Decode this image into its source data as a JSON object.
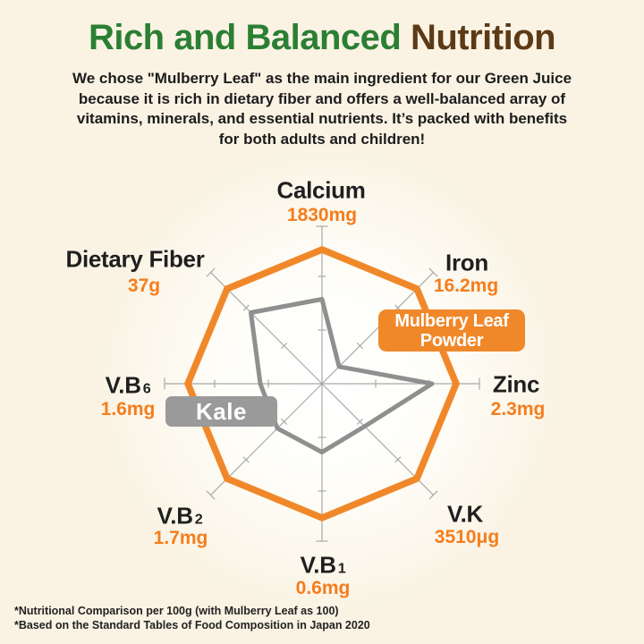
{
  "header": {
    "title_green": "Rich and Balanced",
    "title_brown": "Nutrition",
    "paragraph_lines": [
      "We chose \"Mulberry Leaf\" as the main ingredient for our Green Juice",
      "because it is rich in dietary fiber and offers a well-balanced array of",
      "vitamins, minerals, and essential nutrients. It’s packed with benefits",
      "for both adults and children!"
    ]
  },
  "chart_data": {
    "type": "radar",
    "categories": [
      "Calcium",
      "Iron",
      "Zinc",
      "V.K",
      "V.B1",
      "V.B2",
      "V.B6",
      "Dietary Fiber"
    ],
    "axis_value_labels": [
      "1830mg",
      "16.2mg",
      "2.3mg",
      "3510μg",
      "0.6mg",
      "1.7mg",
      "1.6mg",
      "37g"
    ],
    "axis_max": 100,
    "ticks": [
      40,
      80
    ],
    "series": [
      {
        "name": "Mulberry Leaf Powder",
        "color": "#f0882a",
        "values": [
          100,
          100,
          100,
          100,
          100,
          100,
          100,
          100
        ]
      },
      {
        "name": "Kale",
        "color": "#8f8f8f",
        "values": [
          63,
          18,
          82,
          45,
          51,
          47,
          46,
          75
        ]
      }
    ],
    "legend_position": "on-chart-badges",
    "grid": false
  },
  "axis_labels": [
    {
      "id": "calcium",
      "text": "Calcium",
      "sub": "",
      "value": "1830mg"
    },
    {
      "id": "iron",
      "text": "Iron",
      "sub": "",
      "value": "16.2mg"
    },
    {
      "id": "zinc",
      "text": "Zinc",
      "sub": "",
      "value": "2.3mg"
    },
    {
      "id": "vk",
      "text": "V.K",
      "sub": "",
      "value": "3510μg"
    },
    {
      "id": "vb1",
      "text": "V.B",
      "sub": "1",
      "value": "0.6mg"
    },
    {
      "id": "vb2",
      "text": "V.B",
      "sub": "2",
      "value": "1.7mg"
    },
    {
      "id": "vb6",
      "text": "V.B",
      "sub": "6",
      "value": "1.6mg"
    },
    {
      "id": "fiber",
      "text": "Dietary Fiber",
      "sub": "",
      "value": "37g"
    }
  ],
  "badges": {
    "mulberry": {
      "lines": [
        "Mulberry Leaf",
        "Powder"
      ],
      "color": "#f0882a"
    },
    "kale": {
      "label": "Kale",
      "color": "#9a9a9a"
    }
  },
  "footnotes": [
    "*Nutritional Comparison per 100g (with Mulberry Leaf as 100)",
    "*Based on the Standard Tables of Food Composition in Japan 2020"
  ],
  "colors": {
    "background": "#faf3e4",
    "title_green": "#2b7f33",
    "title_brown": "#5d3a16",
    "accent_orange": "#f0882a",
    "value_orange": "#f57d1c",
    "axis_gray": "#a9a9a9",
    "kale_gray": "#8f8f8f",
    "text_dark": "#1f1f1f"
  }
}
